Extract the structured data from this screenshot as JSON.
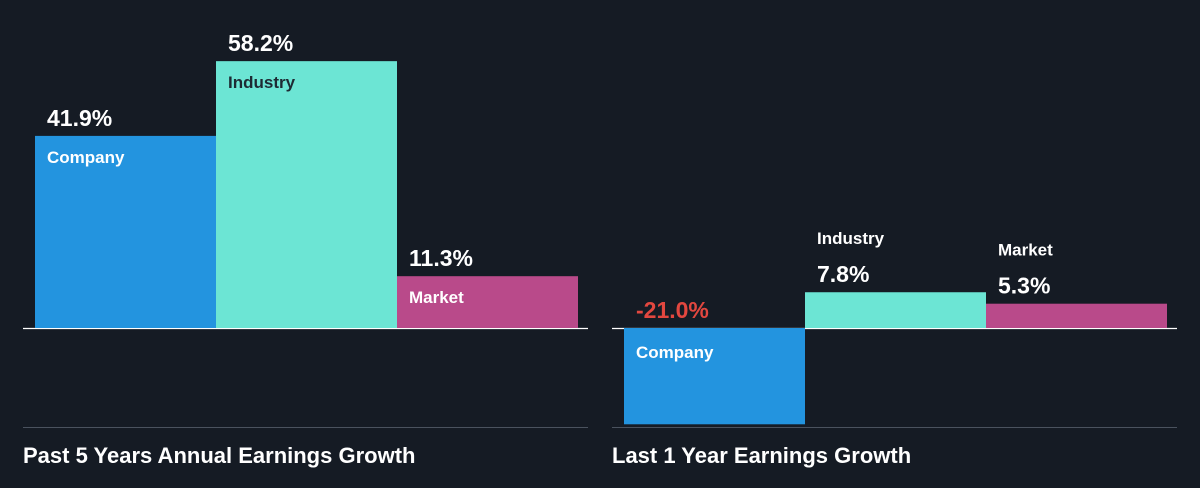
{
  "colors": {
    "background": "#151b24",
    "company": "#2394df",
    "industry": "#6ce5d4",
    "market": "#b94a8a",
    "negative_value": "#e2473f",
    "positive_value": "#ffffff"
  },
  "chart_data": [
    {
      "type": "bar",
      "title": "Past 5 Years Annual Earnings Growth",
      "categories": [
        "Company",
        "Industry",
        "Market"
      ],
      "values": [
        41.9,
        58.2,
        11.3
      ],
      "value_labels": [
        "41.9%",
        "58.2%",
        "11.3%"
      ],
      "unit": "%",
      "grid": false
    },
    {
      "type": "bar",
      "title": "Last 1 Year Earnings Growth",
      "categories": [
        "Company",
        "Industry",
        "Market"
      ],
      "values": [
        -21.0,
        7.8,
        5.3
      ],
      "value_labels": [
        "-21.0%",
        "7.8%",
        "5.3%"
      ],
      "unit": "%",
      "grid": false
    }
  ]
}
